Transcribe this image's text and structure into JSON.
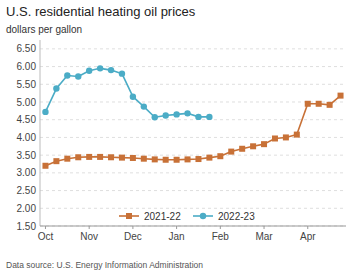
{
  "chart_data": {
    "type": "line",
    "title": "U.S.  residential heating oil prices",
    "ylabel": "dollars per gallon",
    "annotations": [
      "Data source: U.S. Energy Information Administration"
    ],
    "xlim": [
      -0.5,
      27.5
    ],
    "xticks": [
      {
        "value": 0,
        "label": "Oct"
      },
      {
        "value": 4,
        "label": "Nov"
      },
      {
        "value": 8,
        "label": "Dec"
      },
      {
        "value": 12,
        "label": "Jan"
      },
      {
        "value": 16,
        "label": "Feb"
      },
      {
        "value": 20,
        "label": "Mar"
      },
      {
        "value": 24,
        "label": "Apr"
      }
    ],
    "ylim": [
      1.5,
      6.75
    ],
    "yticks": [
      {
        "value": 1.5,
        "label": "1.50"
      },
      {
        "value": 2.0,
        "label": "2.00"
      },
      {
        "value": 2.5,
        "label": "2.50"
      },
      {
        "value": 3.0,
        "label": "3.00"
      },
      {
        "value": 3.5,
        "label": "3.50"
      },
      {
        "value": 4.0,
        "label": "4.00"
      },
      {
        "value": 4.5,
        "label": "4.50"
      },
      {
        "value": 5.0,
        "label": "5.00"
      },
      {
        "value": 5.5,
        "label": "5.50"
      },
      {
        "value": 6.0,
        "label": "6.00"
      },
      {
        "value": 6.5,
        "label": "6.50"
      }
    ],
    "grid": true,
    "legend": "bottom",
    "series": [
      {
        "name": "2021-22",
        "color": "#C87137",
        "marker": "square",
        "x": [
          0,
          1,
          2,
          3,
          4,
          5,
          6,
          7,
          8,
          9,
          10,
          11,
          12,
          13,
          14,
          15,
          16,
          17,
          18,
          19,
          20,
          21,
          22,
          23,
          24,
          25,
          26,
          27
        ],
        "values": [
          3.2,
          3.33,
          3.4,
          3.44,
          3.45,
          3.45,
          3.44,
          3.43,
          3.42,
          3.4,
          3.38,
          3.37,
          3.37,
          3.38,
          3.39,
          3.43,
          3.47,
          3.6,
          3.68,
          3.75,
          3.81,
          3.97,
          4.0,
          4.08,
          4.95,
          4.95,
          4.92,
          5.18
        ]
      },
      {
        "name": "2022-23",
        "color": "#4BACC6",
        "marker": "circle",
        "x": [
          0,
          1,
          2,
          3,
          4,
          5,
          6,
          7,
          8,
          9,
          10,
          11,
          12,
          13,
          14,
          15
        ],
        "values": [
          4.72,
          5.38,
          5.75,
          5.72,
          5.88,
          5.95,
          5.9,
          5.8,
          5.15,
          4.87,
          4.57,
          4.62,
          4.65,
          4.68,
          4.58,
          4.58
        ]
      }
    ]
  }
}
